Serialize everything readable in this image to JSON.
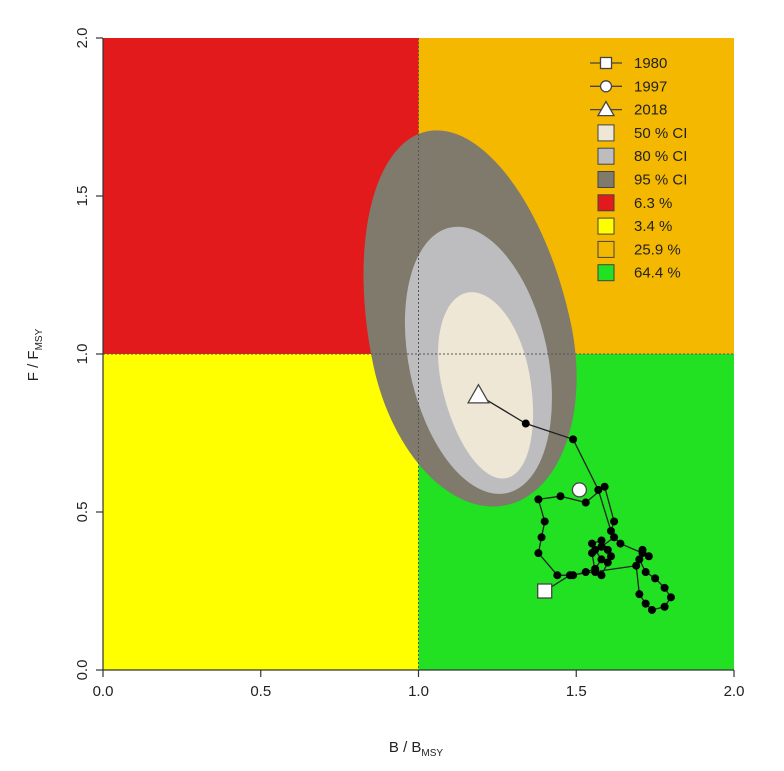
{
  "chart_data": {
    "type": "scatter",
    "title": "",
    "xlabel": {
      "main": "B / B",
      "sub": "MSY"
    },
    "ylabel": {
      "main": "F / F",
      "sub": "MSY"
    },
    "xlim": [
      0,
      2
    ],
    "ylim": [
      0,
      2
    ],
    "x_ticks": [
      "0.0",
      "0.5",
      "1.0",
      "1.5",
      "2.0"
    ],
    "y_ticks": [
      "0.0",
      "0.5",
      "1.0",
      "1.5",
      "2.0"
    ],
    "x_tick_values": [
      0,
      0.5,
      1,
      1.5,
      2
    ],
    "y_tick_values": [
      0,
      0.5,
      1,
      1.5,
      2
    ],
    "reference_lines": {
      "b_ratio": 1.0,
      "f_ratio": 1.0
    },
    "quadrants": [
      {
        "name": "red",
        "x": [
          0,
          1
        ],
        "y": [
          1,
          2
        ],
        "color": "#e31a1c"
      },
      {
        "name": "orange",
        "x": [
          1,
          2
        ],
        "y": [
          1,
          2
        ],
        "color": "#f5b800"
      },
      {
        "name": "yellow",
        "x": [
          0,
          1
        ],
        "y": [
          0,
          1
        ],
        "color": "#ffff00"
      },
      {
        "name": "green",
        "x": [
          1,
          2
        ],
        "y": [
          0,
          1
        ],
        "color": "#22e022"
      }
    ],
    "confidence_regions": [
      {
        "level": "95 % CI",
        "color": "#7f7a6c",
        "center": [
          1.17,
          1.03
        ],
        "rx": 0.32,
        "ry_top": 0.69,
        "ry_bottom": 0.52
      },
      {
        "level": "80 % CI",
        "color": "#bdbdc0",
        "center": [
          1.19,
          0.98
        ],
        "rx": 0.22,
        "ry_top": 0.43,
        "ry_bottom": 0.43
      },
      {
        "level": "50 % CI",
        "color": "#eee7d5",
        "center": [
          1.21,
          0.93
        ],
        "rx": 0.14,
        "ry_top": 0.27,
        "ry_bottom": 0.33
      }
    ],
    "trajectory": {
      "x": [
        1.4,
        1.48,
        1.69,
        1.7,
        1.72,
        1.74,
        1.78,
        1.8,
        1.78,
        1.75,
        1.72,
        1.7,
        1.71,
        1.73,
        1.71,
        1.64,
        1.62,
        1.58,
        1.55,
        1.56,
        1.58,
        1.6,
        1.61,
        1.6,
        1.58,
        1.55,
        1.56,
        1.58,
        1.56,
        1.53,
        1.49,
        1.44,
        1.38,
        1.39,
        1.4,
        1.38,
        1.45,
        1.53,
        1.59,
        1.62,
        1.61,
        1.57,
        1.49,
        1.34,
        1.19
      ],
      "y": [
        0.25,
        0.3,
        0.33,
        0.24,
        0.21,
        0.19,
        0.2,
        0.23,
        0.26,
        0.29,
        0.31,
        0.35,
        0.38,
        0.36,
        0.37,
        0.4,
        0.42,
        0.39,
        0.37,
        0.31,
        0.3,
        0.34,
        0.36,
        0.38,
        0.41,
        0.4,
        0.38,
        0.35,
        0.32,
        0.31,
        0.3,
        0.3,
        0.37,
        0.42,
        0.47,
        0.54,
        0.55,
        0.53,
        0.58,
        0.47,
        0.44,
        0.57,
        0.73,
        0.78,
        0.87
      ],
      "points": [
        {
          "year": "1980",
          "x": 1.4,
          "y": 0.25,
          "marker": "square"
        },
        {
          "year": "1997",
          "x": 1.51,
          "y": 0.57,
          "marker": "circle"
        },
        {
          "year": "2018",
          "x": 1.19,
          "y": 0.87,
          "marker": "triangle"
        }
      ]
    },
    "legend": {
      "position": "top-right",
      "entries": [
        {
          "label": "1980",
          "symbol": "line-square"
        },
        {
          "label": "1997",
          "symbol": "line-circle"
        },
        {
          "label": "2018",
          "symbol": "line-triangle"
        },
        {
          "label": "50 % CI",
          "symbol": "box",
          "color": "#eee7d5"
        },
        {
          "label": "80 % CI",
          "symbol": "box",
          "color": "#bdbdc0"
        },
        {
          "label": "95 % CI",
          "symbol": "box",
          "color": "#7f7a6c"
        },
        {
          "label": "6.3 %",
          "symbol": "box",
          "color": "#e31a1c"
        },
        {
          "label": "3.4 %",
          "symbol": "box",
          "color": "#ffff00"
        },
        {
          "label": "25.9 %",
          "symbol": "box",
          "color": "#f5b800"
        },
        {
          "label": "64.4 %",
          "symbol": "box",
          "color": "#22e022"
        }
      ]
    }
  }
}
